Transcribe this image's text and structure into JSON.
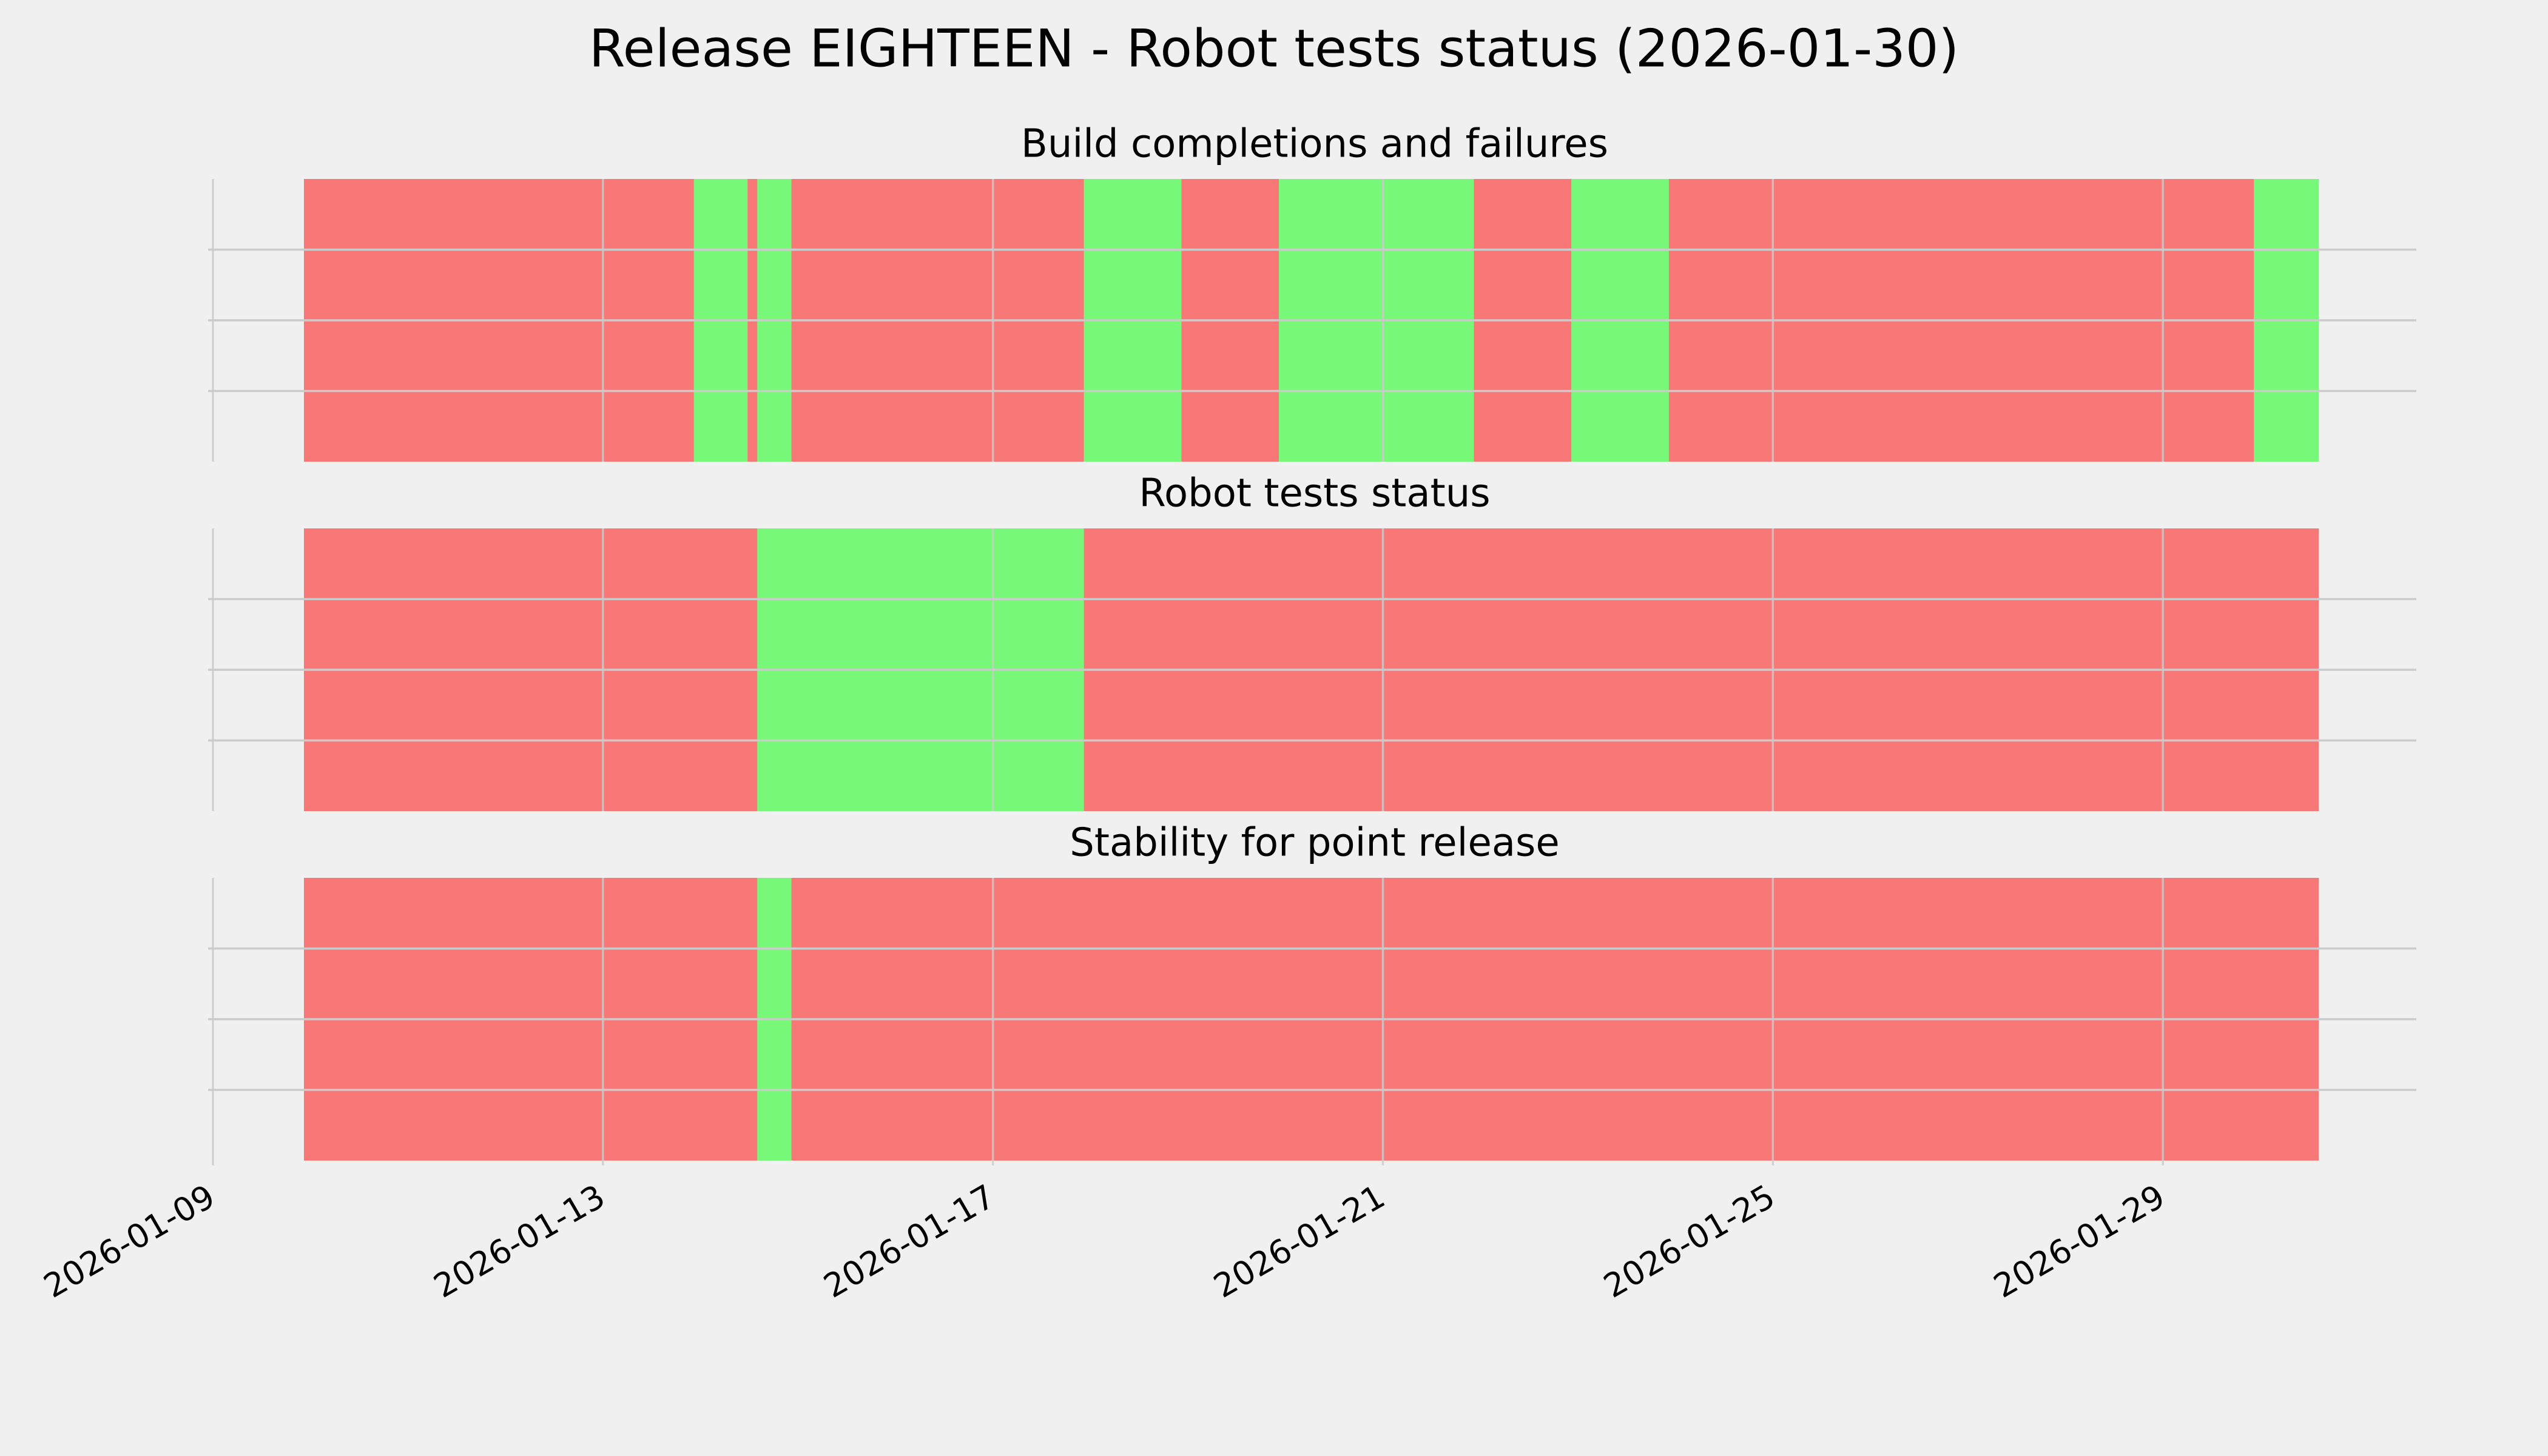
{
  "title": "Release EIGHTEEN - Robot tests status (2026-01-30)",
  "chart_data": [
    {
      "type": "timeline",
      "title": "Build completions and failures",
      "alpha": 0.5,
      "grid": true,
      "ylim": [
        0,
        1
      ],
      "yticks": [
        {
          "value": 0.25,
          "label": null
        },
        {
          "value": 0.5,
          "label": null
        },
        {
          "value": 0.75,
          "label": null
        }
      ],
      "segments": [
        {
          "start": "2026-01-09T22:24",
          "end": "2026-01-13T22:24",
          "color": "#ff0000"
        },
        {
          "start": "2026-01-13T22:24",
          "end": "2026-01-14T11:36",
          "color": "#00ff00"
        },
        {
          "start": "2026-01-14T11:36",
          "end": "2026-01-14T14:00",
          "color": "#ff0000"
        },
        {
          "start": "2026-01-14T14:00",
          "end": "2026-01-14T22:24",
          "color": "#00ff00"
        },
        {
          "start": "2026-01-14T22:24",
          "end": "2026-01-17T22:24",
          "color": "#ff0000"
        },
        {
          "start": "2026-01-17T22:24",
          "end": "2026-01-18T22:24",
          "color": "#00ff00"
        },
        {
          "start": "2026-01-18T22:24",
          "end": "2026-01-19T22:24",
          "color": "#ff0000"
        },
        {
          "start": "2026-01-19T22:24",
          "end": "2026-01-21T22:24",
          "color": "#00ff00"
        },
        {
          "start": "2026-01-21T22:24",
          "end": "2026-01-22T22:24",
          "color": "#ff0000"
        },
        {
          "start": "2026-01-22T22:24",
          "end": "2026-01-23T22:24",
          "color": "#00ff00"
        },
        {
          "start": "2026-01-23T22:24",
          "end": "2026-01-29T22:24",
          "color": "#ff0000"
        },
        {
          "start": "2026-01-29T22:24",
          "end": "2026-01-30T14:24",
          "color": "#00ff00"
        }
      ]
    },
    {
      "type": "timeline",
      "title": "Robot tests status",
      "alpha": 0.5,
      "grid": true,
      "ylim": [
        0,
        1
      ],
      "yticks": [
        {
          "value": 0.25,
          "label": null
        },
        {
          "value": 0.5,
          "label": null
        },
        {
          "value": 0.75,
          "label": null
        }
      ],
      "segments": [
        {
          "start": "2026-01-09T22:24",
          "end": "2026-01-14T14:00",
          "color": "#ff0000"
        },
        {
          "start": "2026-01-14T14:00",
          "end": "2026-01-17T22:24",
          "color": "#00ff00"
        },
        {
          "start": "2026-01-17T22:24",
          "end": "2026-01-30T14:24",
          "color": "#ff0000"
        }
      ]
    },
    {
      "type": "timeline",
      "title": "Stability for point release",
      "alpha": 0.5,
      "grid": true,
      "ylim": [
        0,
        1
      ],
      "yticks": [
        {
          "value": 0.25,
          "label": null
        },
        {
          "value": 0.5,
          "label": null
        },
        {
          "value": 0.75,
          "label": null
        }
      ],
      "xlim": [
        "2026-01-09T00:00",
        "2026-01-31T14:24"
      ],
      "xticks": [
        "2026-01-09",
        "2026-01-13",
        "2026-01-17",
        "2026-01-21",
        "2026-01-25",
        "2026-01-29"
      ],
      "segments": [
        {
          "start": "2026-01-09T22:24",
          "end": "2026-01-14T14:00",
          "color": "#ff0000"
        },
        {
          "start": "2026-01-14T14:00",
          "end": "2026-01-14T22:24",
          "color": "#00ff00"
        },
        {
          "start": "2026-01-14T22:24",
          "end": "2026-01-30T14:24",
          "color": "#ff0000"
        }
      ]
    }
  ]
}
